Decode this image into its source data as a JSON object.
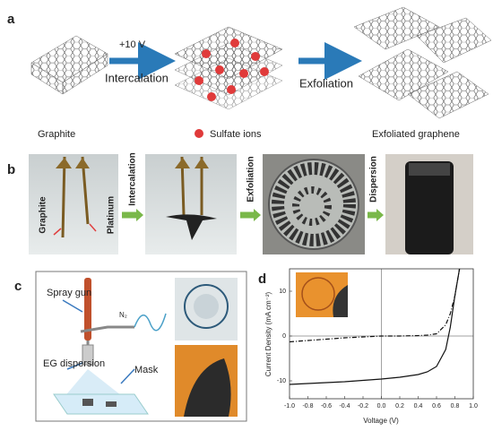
{
  "panel_a": {
    "label": "a",
    "voltage": "+10 V",
    "step1": "Intercalation",
    "step2": "Exfoliation",
    "graphite": "Graphite",
    "ions": "Sulfate ions",
    "product": "Exfoliated graphene"
  },
  "panel_b": {
    "label": "b",
    "electrode1": "Graphite",
    "electrode2": "Platinum",
    "step1": "Intercalation",
    "step2": "Exfoliation",
    "step3": "Dispersion"
  },
  "panel_c": {
    "label": "c",
    "gun": "Spray gun",
    "gas": "N₂",
    "dispersion": "EG dispersion",
    "mask": "Mask"
  },
  "chart_data": {
    "type": "line",
    "label": "d",
    "x_label": "Voltage (V)",
    "y_label": "Current Density (mA cm⁻²)",
    "x": [
      -1.0,
      -0.8,
      -0.6,
      -0.4,
      -0.2,
      0,
      0.2,
      0.4,
      0.5,
      0.6,
      0.7,
      0.75,
      0.8,
      0.85
    ],
    "series": [
      {
        "color": "#111111",
        "dash": "solid",
        "values": [
          -10.8,
          -10.6,
          -10.4,
          -10.2,
          -9.9,
          -9.6,
          -9.2,
          -8.6,
          -8.0,
          -6.8,
          -3.0,
          2.0,
          9.0,
          15.0
        ]
      },
      {
        "color": "#111111",
        "dash": "dash-dot",
        "values": [
          -1.3,
          -1.0,
          -0.7,
          -0.4,
          -0.2,
          0,
          0,
          0.1,
          0.2,
          0.5,
          2.5,
          5.0,
          9.0,
          15.0
        ]
      }
    ],
    "xlim": [
      -1.0,
      1.0
    ],
    "xticks": [
      {
        "value": -1.0,
        "label": "-1.0"
      },
      -0.8,
      -0.6,
      -0.4,
      -0.2,
      {
        "value": 0,
        "label": "0.0"
      },
      0.2,
      0.4,
      0.6,
      0.8,
      {
        "value": 1.0,
        "label": "1.0"
      }
    ],
    "ylim": [
      -14,
      15
    ],
    "yticks": [
      -10,
      0,
      10
    ]
  }
}
